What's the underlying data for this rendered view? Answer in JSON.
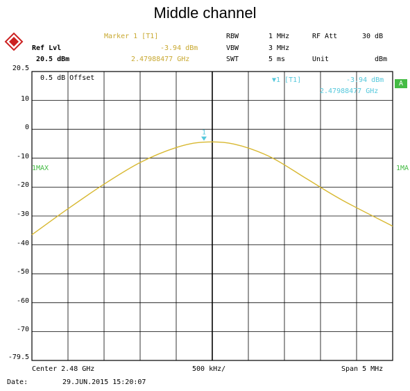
{
  "title": "Middle channel",
  "header": {
    "ref_lvl_label": "Ref Lvl",
    "ref_lvl_value": "20.5 dBm",
    "marker_label": "Marker 1 [T1]",
    "marker_level": "-3.94 dBm",
    "marker_freq": "2.47988477 GHz",
    "rbw_label": "RBW",
    "rbw_value": "1 MHz",
    "vbw_label": "VBW",
    "vbw_value": "3 MHz",
    "swt_label": "SWT",
    "swt_value": "5 ms",
    "rf_att_label": "RF Att",
    "rf_att_value": "30 dB",
    "unit_label": "Unit",
    "unit_value": "dBm"
  },
  "screen": {
    "offset_text": "0.5 dB Offset",
    "marker_box_line1": "▼1 [T1]",
    "marker_box_level": "-3.94 dBm",
    "marker_box_freq": "2.47988477 GHz",
    "trace_label_left": "1MAX",
    "trace_label_right": "1MA",
    "a_badge": "A",
    "marker_number": "1"
  },
  "footer": {
    "center": "Center 2.48 GHz",
    "per_div": "500 kHz/",
    "span": "Span 5 MHz",
    "date_label": "Date:",
    "date_value": "29.JUN.2015  15:20:07"
  },
  "colors": {
    "trace": "#d8b830",
    "grid": "#000000",
    "marker": "#55c8dc",
    "badge": "#44bb44"
  },
  "chart_data": {
    "type": "line",
    "title": "Middle channel",
    "xlabel": "",
    "ylabel": "",
    "xlim": [
      2.4775,
      2.4825
    ],
    "ylim": [
      -79.5,
      20.5
    ],
    "y_ticks": [
      "20.5",
      "10",
      "0",
      "-10",
      "-20",
      "-30",
      "-40",
      "-50",
      "-60",
      "-70",
      "-79.5"
    ],
    "grid": true,
    "x_units": "GHz",
    "y_units": "dBm",
    "series": [
      {
        "name": "1MAX",
        "x": [
          2.4775,
          2.478,
          2.4785,
          2.479,
          2.4795,
          2.47988,
          2.4803,
          2.4808,
          2.4813,
          2.4818,
          2.4825
        ],
        "y": [
          -36.0,
          -27.0,
          -18.5,
          -11.0,
          -5.8,
          -3.94,
          -4.6,
          -9.0,
          -16.5,
          -24.0,
          -33.0
        ]
      }
    ],
    "markers": [
      {
        "label": "1",
        "x": 2.47988477,
        "y": -3.94
      }
    ]
  }
}
